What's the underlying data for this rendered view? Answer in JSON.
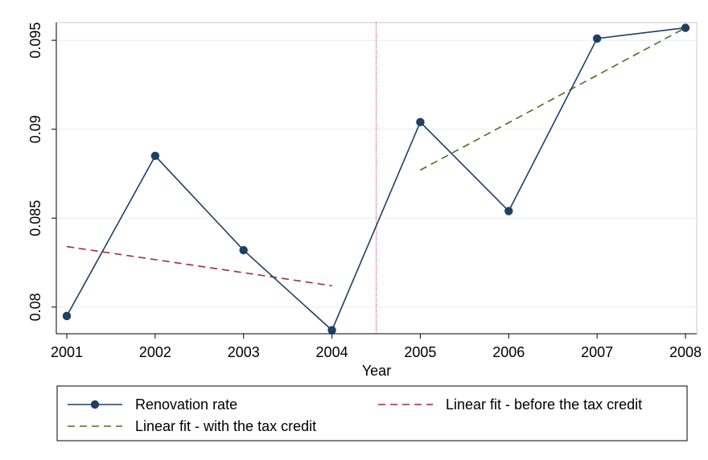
{
  "chart_data": {
    "type": "line",
    "title": "",
    "xlabel": "Year",
    "ylabel": "",
    "x": [
      2001,
      2002,
      2003,
      2004,
      2005,
      2006,
      2007,
      2008
    ],
    "xlim": [
      2001,
      2008
    ],
    "ylim": [
      0.0785,
      0.096
    ],
    "x_ticks": [
      "2001",
      "2002",
      "2003",
      "2004",
      "2005",
      "2006",
      "2007",
      "2008"
    ],
    "y_ticks": [
      {
        "value": 0.08,
        "label": "0.08"
      },
      {
        "value": 0.085,
        "label": "0.085"
      },
      {
        "value": 0.09,
        "label": "0.09"
      },
      {
        "value": 0.095,
        "label": "0.095"
      }
    ],
    "grid": true,
    "series": [
      {
        "name": "Renovation rate",
        "style": "solid-markers",
        "color": "#1f3f63",
        "x": [
          2001,
          2002,
          2003,
          2004,
          2005,
          2006,
          2007,
          2008
        ],
        "values": [
          0.0795,
          0.0885,
          0.0832,
          0.0787,
          0.0904,
          0.0854,
          0.0951,
          0.0957
        ]
      },
      {
        "name": "Linear fit - before the tax credit",
        "style": "dashed",
        "color": "#9b2f3b",
        "x": [
          2001,
          2004
        ],
        "values": [
          0.0834,
          0.0812
        ]
      },
      {
        "name": "Linear fit - with the tax credit",
        "style": "dashed",
        "color": "#4a6f1f",
        "x": [
          2005,
          2008
        ],
        "values": [
          0.0877,
          0.0957
        ]
      }
    ],
    "reference_line": {
      "x": 2004.5,
      "style": "dotted",
      "color": "#e0204a"
    },
    "legend": {
      "placement": "bottom",
      "entries": [
        "Renovation rate",
        "Linear fit - before the tax credit",
        "Linear fit - with the tax credit"
      ]
    }
  }
}
